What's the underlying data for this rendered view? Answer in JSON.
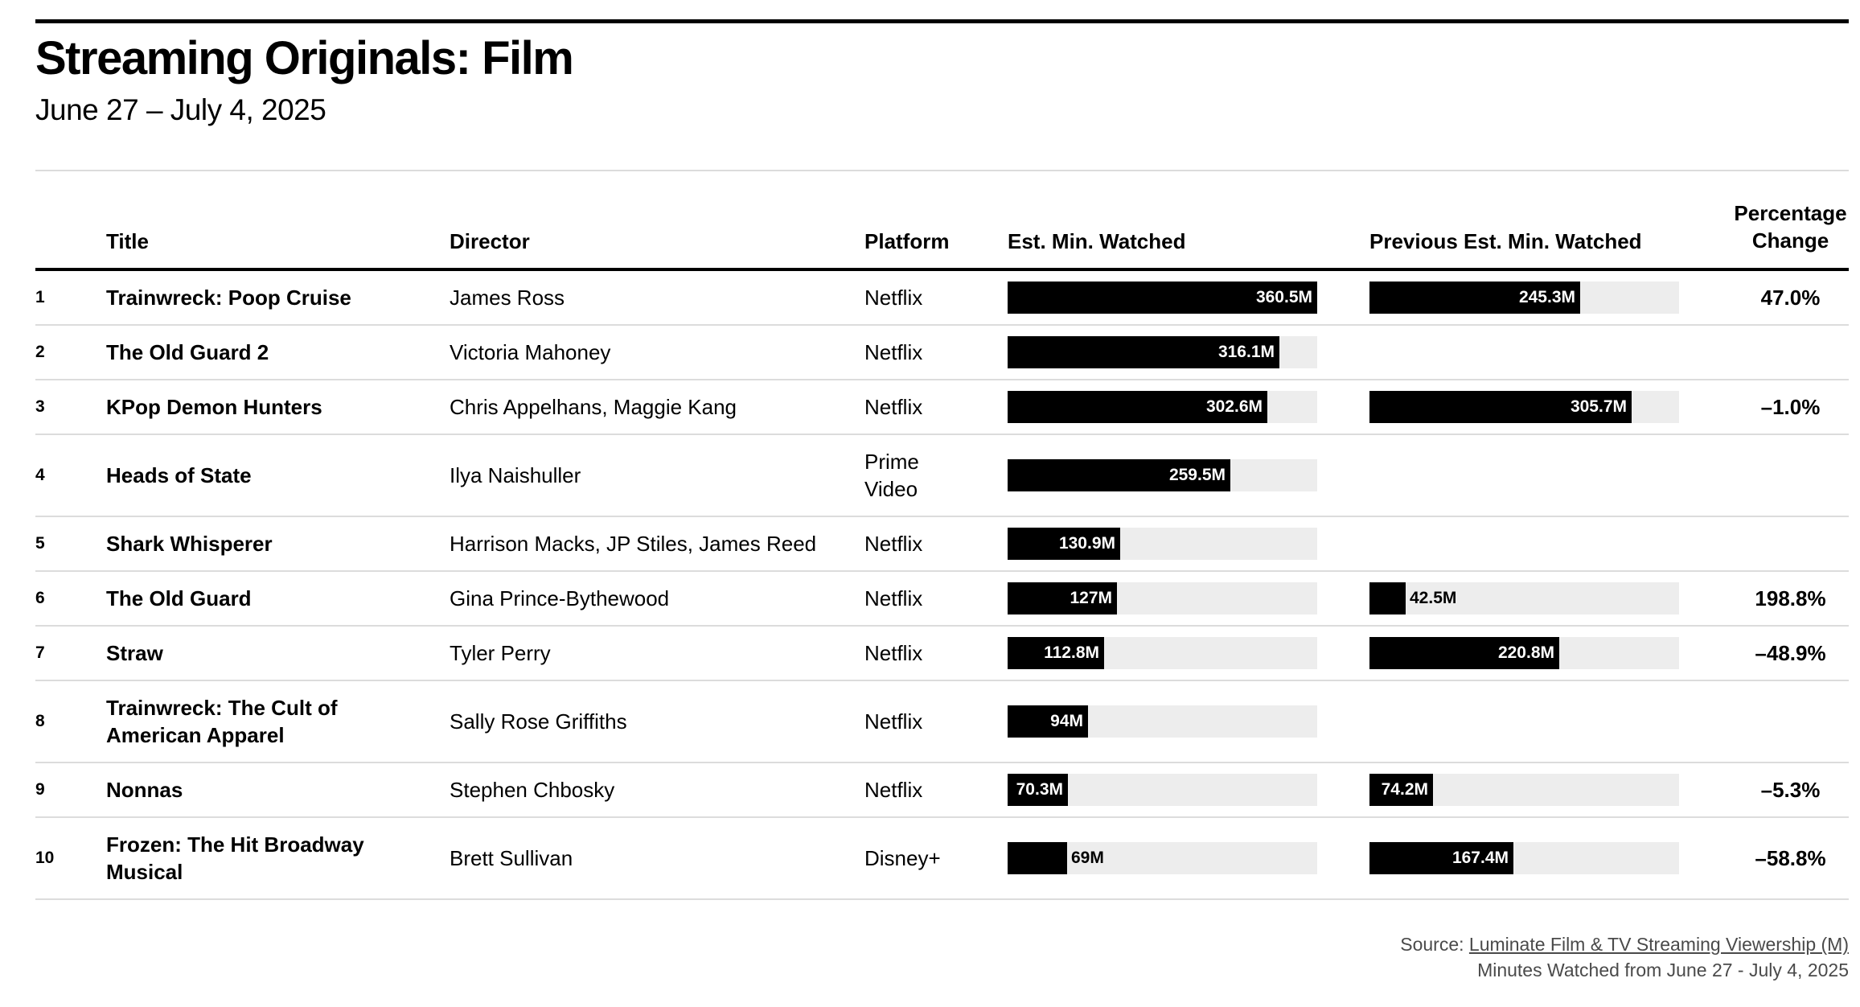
{
  "title": "Streaming Originals: Film",
  "subtitle": "June 27 – July 4, 2025",
  "columns": {
    "title": "Title",
    "director": "Director",
    "platform": "Platform",
    "est": "Est. Min. Watched",
    "prev": "Previous Est. Min. Watched",
    "pct_line1": "Percentage",
    "pct_line2": "Change"
  },
  "footer": {
    "source_prefix": "Source: ",
    "source_link": "Luminate Film & TV Streaming Viewership (M)",
    "note": "Minutes Watched from June 27 - July 4, 2025"
  },
  "chart_data": {
    "type": "table",
    "bar_max": 360.5,
    "unit": "M",
    "rows": [
      {
        "rank": "1",
        "title": "Trainwreck: Poop Cruise",
        "director": "James Ross",
        "platform": "Netflix",
        "est": 360.5,
        "est_label": "360.5M",
        "prev": 245.3,
        "prev_label": "245.3M",
        "pct": "47.0%"
      },
      {
        "rank": "2",
        "title": "The Old Guard 2",
        "director": "Victoria Mahoney",
        "platform": "Netflix",
        "est": 316.1,
        "est_label": "316.1M",
        "prev": null,
        "prev_label": "",
        "pct": ""
      },
      {
        "rank": "3",
        "title": "KPop Demon Hunters",
        "director": "Chris Appelhans, Maggie Kang",
        "platform": "Netflix",
        "est": 302.6,
        "est_label": "302.6M",
        "prev": 305.7,
        "prev_label": "305.7M",
        "pct": "–1.0%"
      },
      {
        "rank": "4",
        "title": "Heads of State",
        "director": "Ilya Naishuller",
        "platform": "Prime Video",
        "est": 259.5,
        "est_label": "259.5M",
        "prev": null,
        "prev_label": "",
        "pct": ""
      },
      {
        "rank": "5",
        "title": "Shark Whisperer",
        "director": "Harrison Macks, JP Stiles, James Reed",
        "platform": "Netflix",
        "est": 130.9,
        "est_label": "130.9M",
        "prev": null,
        "prev_label": "",
        "pct": ""
      },
      {
        "rank": "6",
        "title": "The Old Guard",
        "director": "Gina Prince-Bythewood",
        "platform": "Netflix",
        "est": 127,
        "est_label": "127M",
        "prev": 42.5,
        "prev_label": "42.5M",
        "pct": "198.8%"
      },
      {
        "rank": "7",
        "title": "Straw",
        "director": "Tyler Perry",
        "platform": "Netflix",
        "est": 112.8,
        "est_label": "112.8M",
        "prev": 220.8,
        "prev_label": "220.8M",
        "pct": "–48.9%"
      },
      {
        "rank": "8",
        "title": "Trainwreck: The Cult of American Apparel",
        "director": "Sally Rose Griffiths",
        "platform": "Netflix",
        "est": 94,
        "est_label": "94M",
        "prev": null,
        "prev_label": "",
        "pct": ""
      },
      {
        "rank": "9",
        "title": "Nonnas",
        "director": "Stephen Chbosky",
        "platform": "Netflix",
        "est": 70.3,
        "est_label": "70.3M",
        "prev": 74.2,
        "prev_label": "74.2M",
        "pct": "–5.3%"
      },
      {
        "rank": "10",
        "title": "Frozen: The Hit Broadway Musical",
        "director": "Brett Sullivan",
        "platform": "Disney+",
        "est": 69,
        "est_label": "69M",
        "prev": 167.4,
        "prev_label": "167.4M",
        "pct": "–58.8%"
      }
    ]
  }
}
